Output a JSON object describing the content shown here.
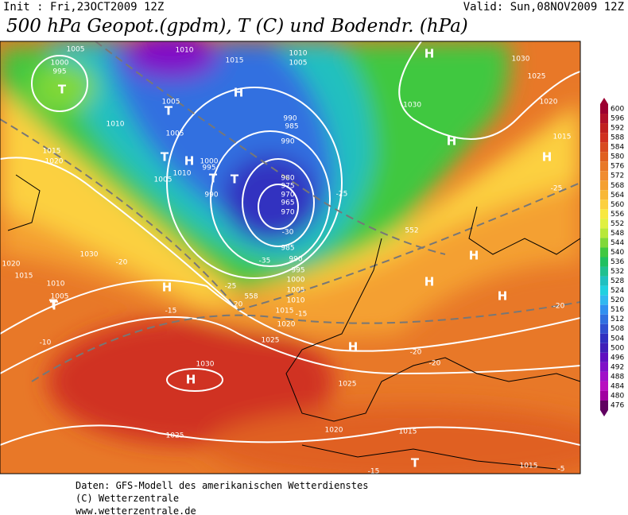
{
  "header": {
    "init": "Init : Fri,23OCT2009 12Z",
    "valid": "Valid: Sun,08NOV2009 12Z",
    "title": "500 hPa Geopot.(gpdm), T (C) und Bodendr. (hPa)"
  },
  "map": {
    "labels": [
      "1000",
      "995",
      "T",
      "1005",
      "1010",
      "1010",
      "1015",
      "1005",
      "T",
      "1005",
      "T",
      "H",
      "1010",
      "1005",
      "1015",
      "1020",
      "T",
      "H",
      "1000",
      "995",
      "T",
      "990",
      "990",
      "985",
      "990",
      "980",
      "975",
      "970",
      "965",
      "970",
      "-30",
      "-35",
      "985",
      "990",
      "995",
      "1000",
      "1005",
      "1010",
      "1015",
      "1020",
      "1025",
      "H",
      "1010",
      "1005",
      "H",
      "-1030",
      "H",
      "1030",
      "1025",
      "1020",
      "1015",
      "T",
      "-20",
      "-25",
      "-25",
      "H",
      "H",
      "H",
      "-20",
      "-15",
      "1020",
      "1030",
      "-20",
      "1015",
      "1010",
      "1005",
      "T",
      "H",
      "-15",
      "-10",
      "1030",
      "H",
      "1025",
      "1025",
      "H",
      "1020",
      "1015",
      "-20",
      "-20",
      "1015",
      "T",
      "-15",
      "-5",
      "-25",
      "552",
      "558"
    ]
  },
  "colorbar": {
    "labels": [
      600,
      596,
      592,
      588,
      584,
      580,
      576,
      572,
      568,
      564,
      560,
      556,
      552,
      548,
      544,
      540,
      536,
      532,
      528,
      524,
      520,
      516,
      512,
      508,
      504,
      500,
      496,
      492,
      488,
      484,
      480,
      476
    ],
    "colors": [
      "#9c0030",
      "#b0102a",
      "#c02020",
      "#d03020",
      "#d84a20",
      "#e06020",
      "#e87828",
      "#f08c30",
      "#f4a030",
      "#f8b838",
      "#fcd040",
      "#f8e840",
      "#e0f040",
      "#b8e838",
      "#80d838",
      "#40c840",
      "#20c060",
      "#20c090",
      "#20c0c0",
      "#20d0e0",
      "#30b8f0",
      "#3090f0",
      "#3070e0",
      "#3050d0",
      "#3030c0",
      "#4020b8",
      "#6010c0",
      "#8010c8",
      "#a010c8",
      "#b810c0",
      "#a000a0",
      "#600060"
    ]
  },
  "footer": {
    "lines": [
      "Daten: GFS-Modell des amerikanischen Wetterdienstes",
      "(C) Wetterzentrale",
      "www.wetterzentrale.de"
    ]
  }
}
